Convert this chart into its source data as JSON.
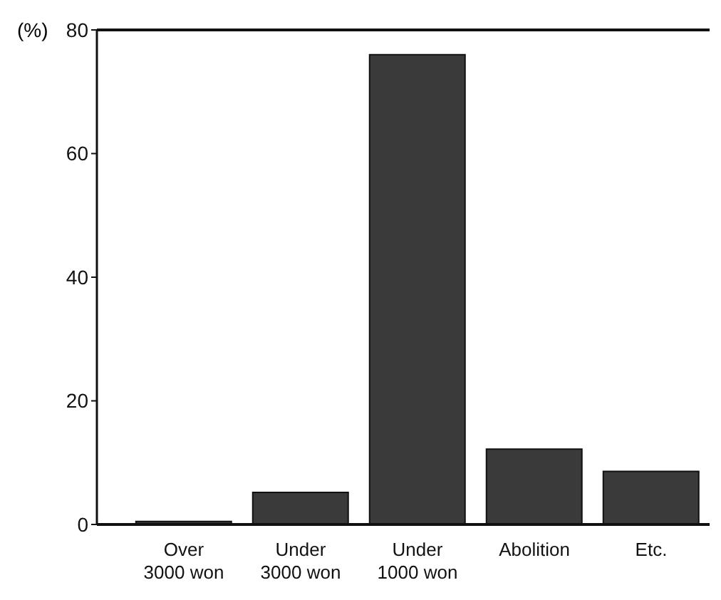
{
  "chart_data": {
    "type": "bar",
    "ylabel": "(%)",
    "categories": [
      "Over\n3000 won",
      "Under\n3000 won",
      "Under\n1000 won",
      "Abolition",
      "Etc."
    ],
    "values": [
      0.5,
      5.2,
      76,
      12.2,
      8.6
    ],
    "color": "#3a3a3a",
    "ylim": [
      0,
      80
    ],
    "yticks": [
      0,
      20,
      40,
      60,
      80
    ],
    "grid": false
  }
}
